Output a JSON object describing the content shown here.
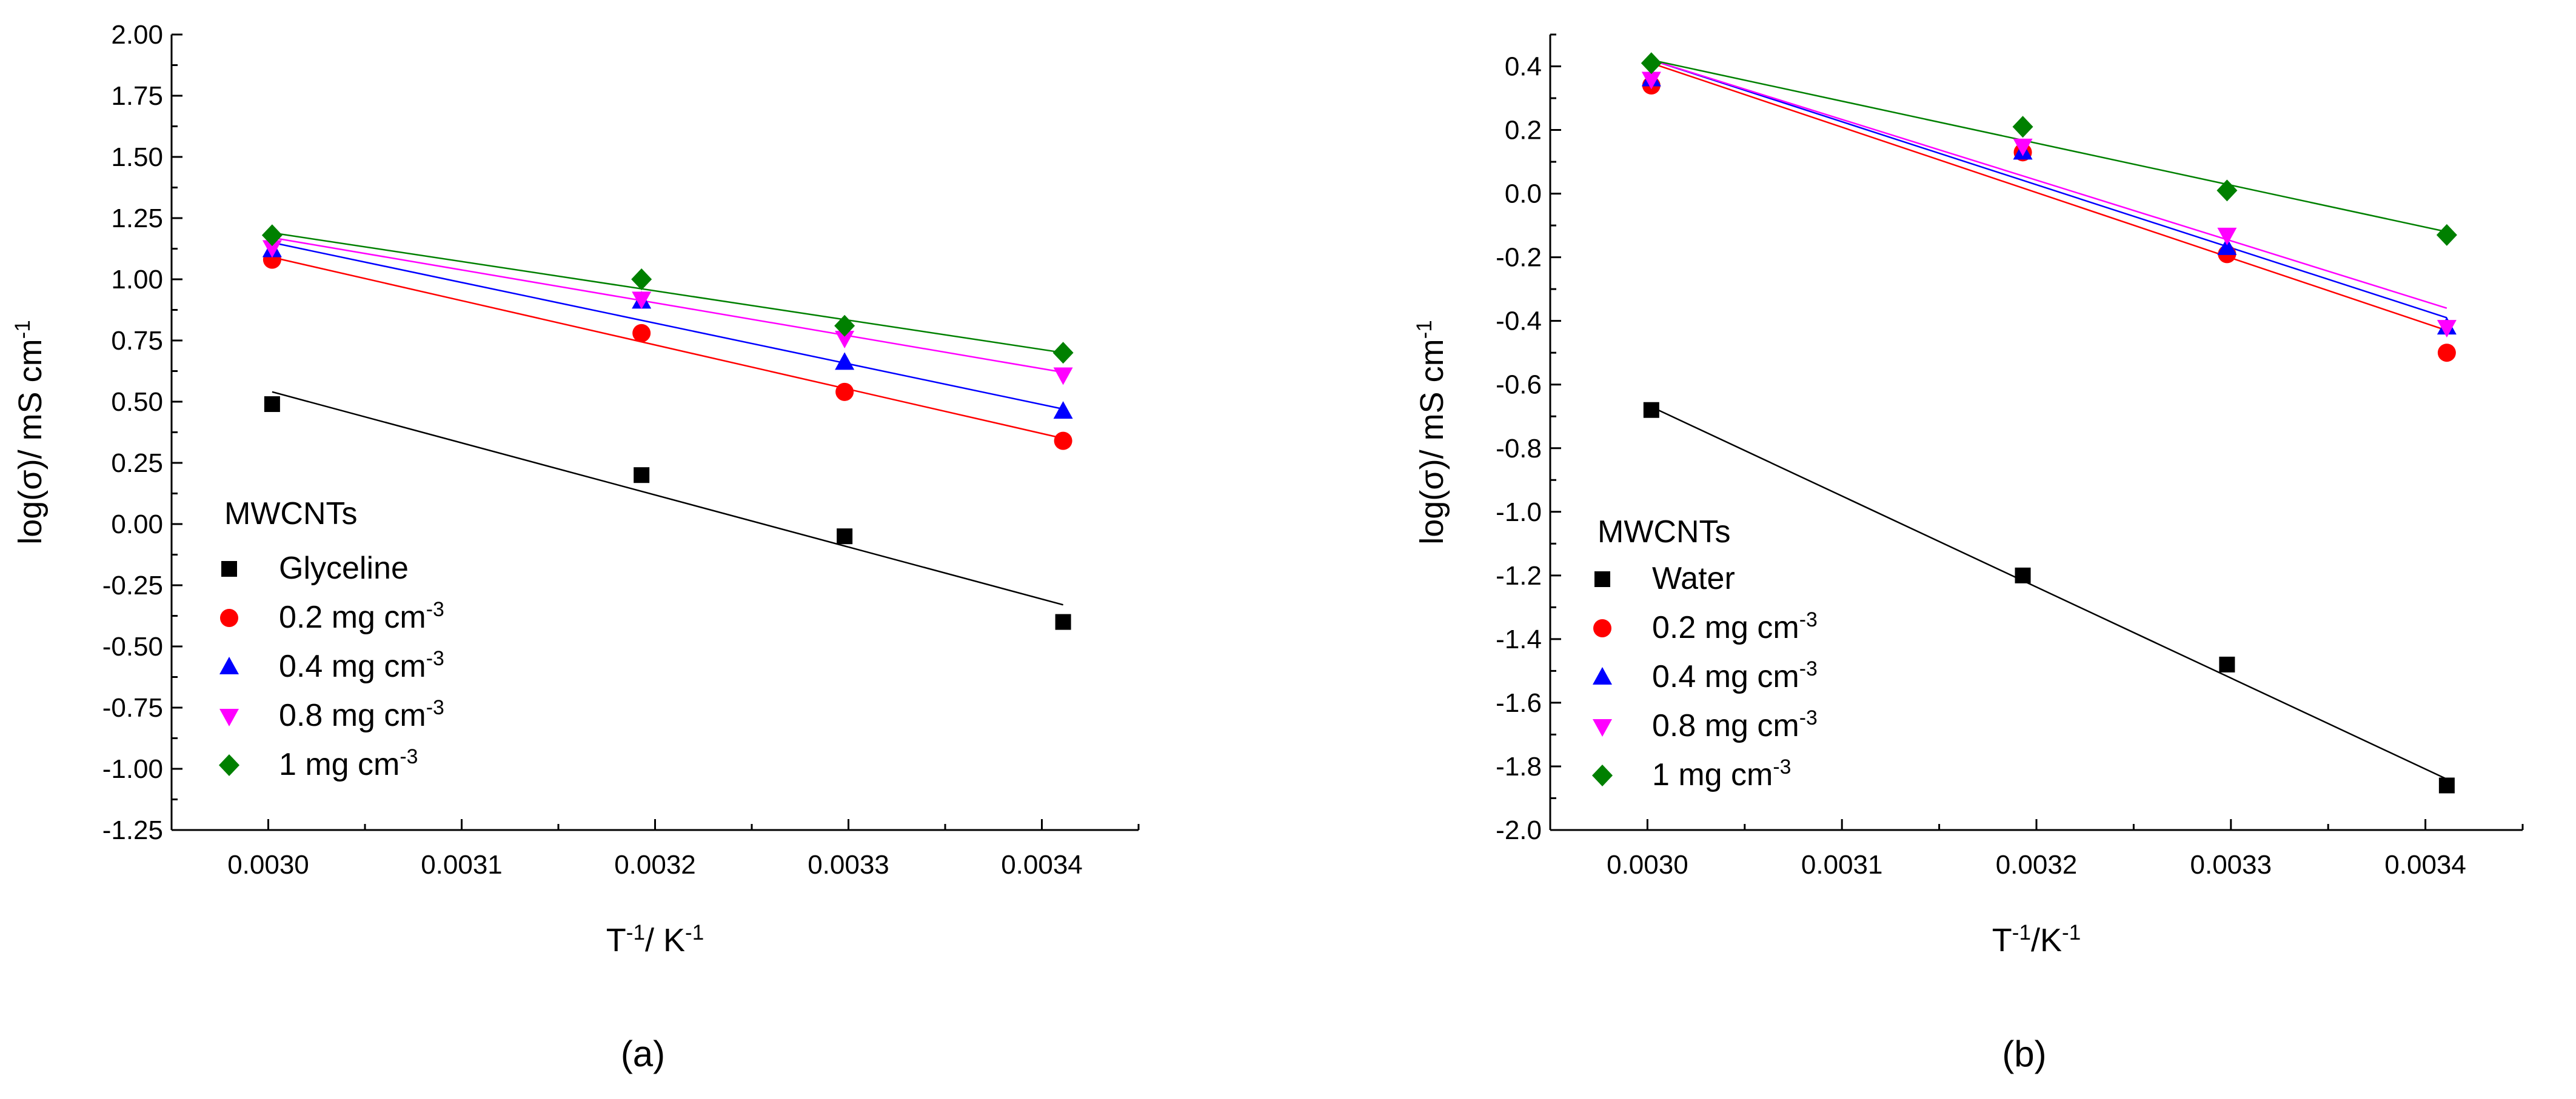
{
  "chart_data": [
    {
      "type": "scatter",
      "panel_label": "(a)",
      "xlabel": {
        "main": "T",
        "sup1": "-1",
        "mid": "/ K",
        "sup2": "-1"
      },
      "ylabel": {
        "main": "log(σ)/ mS cm",
        "sup": "-1"
      },
      "xlim": [
        0.00295,
        0.00345
      ],
      "ylim": [
        -1.25,
        2.0
      ],
      "xticks": [
        "0.0030",
        "0.0031",
        "0.0032",
        "0.0033",
        "0.0034"
      ],
      "yticks": [
        "-1.25",
        "-1.00",
        "-0.75",
        "-0.50",
        "-0.25",
        "0.00",
        "0.25",
        "0.50",
        "0.75",
        "1.00",
        "1.25",
        "1.50",
        "1.75",
        "2.00"
      ],
      "legend_title": "MWCNTs",
      "legend_position": "bottom-left",
      "x": [
        0.003002,
        0.003193,
        0.003298,
        0.003411
      ],
      "series": [
        {
          "name": "Glyceline",
          "sup": "",
          "marker": "square",
          "color": "#000000",
          "values": [
            0.49,
            0.2,
            -0.05,
            -0.4
          ],
          "fit": [
            0.54,
            -0.33
          ]
        },
        {
          "name": "0.2 mg cm",
          "sup": "-3",
          "marker": "circle",
          "color": "#ff0000",
          "values": [
            1.08,
            0.78,
            0.54,
            0.34
          ],
          "fit": [
            1.09,
            0.35
          ]
        },
        {
          "name": "0.4 mg cm",
          "sup": "-3",
          "marker": "triangle-up",
          "color": "#0000ff",
          "values": [
            1.12,
            0.91,
            0.66,
            0.46
          ],
          "fit": [
            1.15,
            0.47
          ]
        },
        {
          "name": "0.8 mg cm",
          "sup": "-3",
          "marker": "triangle-down",
          "color": "#ff00ff",
          "values": [
            1.13,
            0.92,
            0.76,
            0.61
          ],
          "fit": [
            1.17,
            0.62
          ]
        },
        {
          "name": "1 mg cm",
          "sup": "-3",
          "marker": "diamond",
          "color": "#008000",
          "values": [
            1.18,
            1.0,
            0.81,
            0.7
          ],
          "fit": [
            1.19,
            0.7
          ]
        }
      ]
    },
    {
      "type": "scatter",
      "panel_label": "(b)",
      "xlabel": {
        "main": "T",
        "sup1": "-1",
        "mid": "/K",
        "sup2": "-1"
      },
      "ylabel": {
        "main": "log(σ)/ mS cm",
        "sup": "-1"
      },
      "xlim": [
        0.00295,
        0.00345
      ],
      "ylim": [
        -2.0,
        0.5
      ],
      "xticks": [
        "0.0030",
        "0.0031",
        "0.0032",
        "0.0033",
        "0.0034"
      ],
      "yticks": [
        "-2.0",
        "-1.8",
        "-1.6",
        "-1.4",
        "-1.2",
        "-1.0",
        "-0.8",
        "-0.6",
        "-0.4",
        "-0.2",
        "0.0",
        "0.2",
        "0.4"
      ],
      "legend_title": "MWCNTs",
      "legend_position": "bottom-left",
      "x": [
        0.003002,
        0.003193,
        0.003298,
        0.003411
      ],
      "series": [
        {
          "name": "Water",
          "sup": "",
          "marker": "square",
          "color": "#000000",
          "values": [
            -0.68,
            -1.2,
            -1.48,
            -1.86
          ],
          "fit": [
            -0.67,
            -1.84
          ]
        },
        {
          "name": "0.2 mg cm",
          "sup": "-3",
          "marker": "circle",
          "color": "#ff0000",
          "values": [
            0.34,
            0.13,
            -0.19,
            -0.5
          ],
          "fit": [
            0.41,
            -0.43
          ]
        },
        {
          "name": "0.4 mg cm",
          "sup": "-3",
          "marker": "triangle-up",
          "color": "#0000ff",
          "values": [
            0.36,
            0.13,
            -0.17,
            -0.42
          ],
          "fit": [
            0.42,
            -0.39
          ]
        },
        {
          "name": "0.8 mg cm",
          "sup": "-3",
          "marker": "triangle-down",
          "color": "#ff00ff",
          "values": [
            0.36,
            0.15,
            -0.13,
            -0.42
          ],
          "fit": [
            0.42,
            -0.36
          ]
        },
        {
          "name": "1 mg cm",
          "sup": "-3",
          "marker": "diamond",
          "color": "#008000",
          "values": [
            0.41,
            0.21,
            0.01,
            -0.13
          ],
          "fit": [
            0.42,
            -0.12
          ]
        }
      ]
    }
  ]
}
